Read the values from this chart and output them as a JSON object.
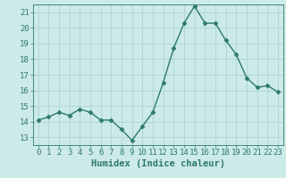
{
  "x": [
    0,
    1,
    2,
    3,
    4,
    5,
    6,
    7,
    8,
    9,
    10,
    11,
    12,
    13,
    14,
    15,
    16,
    17,
    18,
    19,
    20,
    21,
    22,
    23
  ],
  "y": [
    14.1,
    14.3,
    14.6,
    14.4,
    14.8,
    14.6,
    14.1,
    14.1,
    13.5,
    12.8,
    13.7,
    14.6,
    16.5,
    18.7,
    20.3,
    21.4,
    20.3,
    20.3,
    19.2,
    18.3,
    16.8,
    16.2,
    16.3,
    15.9
  ],
  "xlabel": "Humidex (Indice chaleur)",
  "xlim": [
    -0.5,
    23.5
  ],
  "ylim": [
    12.5,
    21.5
  ],
  "yticks": [
    13,
    14,
    15,
    16,
    17,
    18,
    19,
    20,
    21
  ],
  "xticks": [
    0,
    1,
    2,
    3,
    4,
    5,
    6,
    7,
    8,
    9,
    10,
    11,
    12,
    13,
    14,
    15,
    16,
    17,
    18,
    19,
    20,
    21,
    22,
    23
  ],
  "line_color": "#2d7a6a",
  "marker": "D",
  "marker_size": 2.5,
  "bg_color": "#cceae8",
  "grid_color": "#b0d8d5",
  "tick_label_fontsize": 6.5,
  "xlabel_fontsize": 7.5,
  "linewidth": 1.0
}
